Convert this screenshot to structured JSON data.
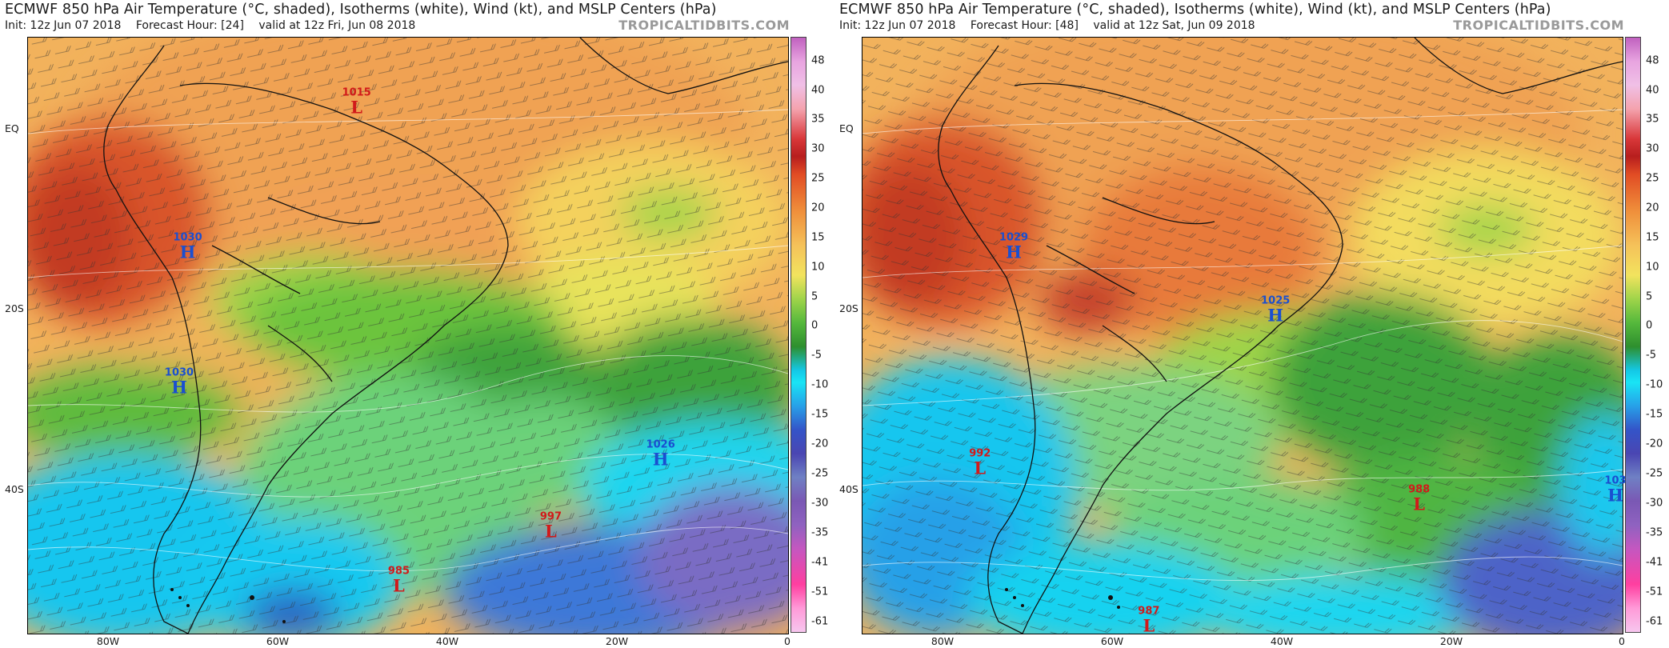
{
  "colorbar_ticks": [
    "48",
    "40",
    "35",
    "30",
    "25",
    "20",
    "15",
    "10",
    "5",
    "0",
    "-5",
    "-10",
    "-15",
    "-20",
    "-25",
    "-30",
    "-35",
    "-41",
    "-51",
    "-61"
  ],
  "lat_labels": [
    "EQ",
    "20S",
    "40S"
  ],
  "lon_labels": [
    "80W",
    "60W",
    "40W",
    "20W",
    "0"
  ],
  "brand": "TROPICALTIDBITS.COM",
  "panels": [
    {
      "title": "ECMWF 850 hPa Air Temperature (°C, shaded), Isotherms (white), Wind (kt), and MSLP Centers (hPa)",
      "init": "Init: 12z Jun 07 2018",
      "forecast_hour": "Forecast Hour: [24]",
      "valid": "valid at 12z Fri, Jun 08 2018",
      "centers": [
        {
          "type": "L",
          "pressure": "1015",
          "lon": -51,
          "lat": 3
        },
        {
          "type": "H",
          "pressure": "1030",
          "lon": -71,
          "lat": -13
        },
        {
          "type": "H",
          "pressure": "1030",
          "lon": -72,
          "lat": -28
        },
        {
          "type": "H",
          "pressure": "1026",
          "lon": -15,
          "lat": -36
        },
        {
          "type": "L",
          "pressure": "997",
          "lon": -28,
          "lat": -44
        },
        {
          "type": "L",
          "pressure": "985",
          "lon": -46,
          "lat": -50
        }
      ]
    },
    {
      "title": "ECMWF 850 hPa Air Temperature (°C, shaded), Isotherms (white), Wind (kt), and MSLP Centers (hPa)",
      "init": "Init: 12z Jun 07 2018",
      "forecast_hour": "Forecast Hour: [48]",
      "valid": "valid at 12z Sat, Jun 09 2018",
      "centers": [
        {
          "type": "H",
          "pressure": "1029",
          "lon": -72,
          "lat": -13
        },
        {
          "type": "H",
          "pressure": "1025",
          "lon": -41,
          "lat": -20
        },
        {
          "type": "L",
          "pressure": "992",
          "lon": -76,
          "lat": -37
        },
        {
          "type": "L",
          "pressure": "988",
          "lon": -24,
          "lat": -41
        },
        {
          "type": "L",
          "pressure": "987",
          "lon": -56,
          "lat": -57
        },
        {
          "type": "H",
          "pressure": "103",
          "lon": -0.5,
          "lat": -40
        }
      ]
    }
  ]
}
